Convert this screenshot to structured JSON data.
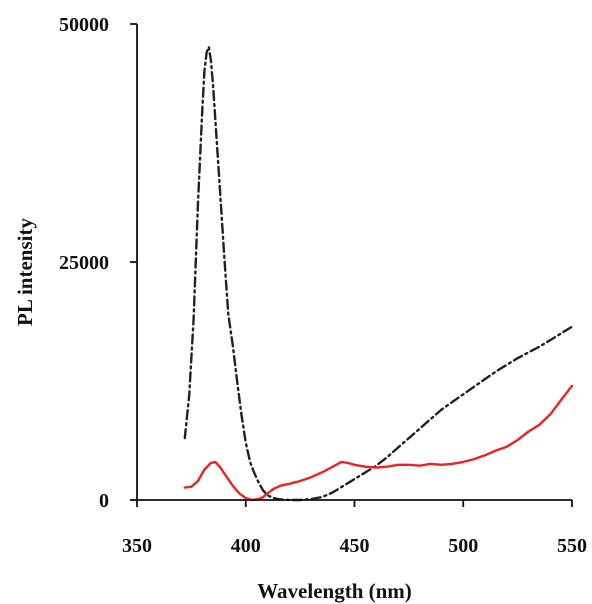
{
  "chart_data": {
    "type": "line",
    "xlabel": "Wavelength (nm)",
    "ylabel": "PL intensity",
    "xlim": [
      350,
      550
    ],
    "ylim": [
      0,
      50000
    ],
    "x_ticks": [
      350,
      400,
      450,
      500,
      550
    ],
    "y_ticks": [
      0,
      25000,
      50000
    ],
    "x_tick_labels": [
      "350",
      "400",
      "450",
      "500",
      "550"
    ],
    "y_tick_labels": [
      "0",
      "25000",
      "50000"
    ],
    "grid": false,
    "legend": "none",
    "series": [
      {
        "style": "dash-dot",
        "color": "#222222",
        "points": [
          [
            372,
            6500
          ],
          [
            374,
            11000
          ],
          [
            376,
            19000
          ],
          [
            378,
            31000
          ],
          [
            380,
            41000
          ],
          [
            381,
            45000
          ],
          [
            382,
            47000
          ],
          [
            383,
            47600
          ],
          [
            384,
            46200
          ],
          [
            385,
            43500
          ],
          [
            386,
            40000
          ],
          [
            388,
            33000
          ],
          [
            390,
            26000
          ],
          [
            392,
            19500
          ],
          [
            394,
            16300
          ],
          [
            396,
            12500
          ],
          [
            398,
            9000
          ],
          [
            400,
            6000
          ],
          [
            402,
            4000
          ],
          [
            404,
            2800
          ],
          [
            406,
            1800
          ],
          [
            408,
            1000
          ],
          [
            410,
            500
          ],
          [
            412,
            250
          ],
          [
            415,
            80
          ],
          [
            420,
            0
          ],
          [
            425,
            0
          ],
          [
            430,
            100
          ],
          [
            435,
            300
          ],
          [
            440,
            800
          ],
          [
            445,
            1500
          ],
          [
            450,
            2200
          ],
          [
            455,
            2900
          ],
          [
            460,
            3600
          ],
          [
            465,
            4500
          ],
          [
            470,
            5500
          ],
          [
            475,
            6500
          ],
          [
            480,
            7500
          ],
          [
            485,
            8500
          ],
          [
            490,
            9500
          ],
          [
            495,
            10300
          ],
          [
            500,
            11100
          ],
          [
            505,
            11900
          ],
          [
            510,
            12700
          ],
          [
            515,
            13500
          ],
          [
            520,
            14200
          ],
          [
            525,
            14900
          ],
          [
            530,
            15500
          ],
          [
            535,
            16100
          ],
          [
            540,
            16800
          ],
          [
            545,
            17500
          ],
          [
            550,
            18200
          ]
        ]
      },
      {
        "style": "solid",
        "color": "#ee2222",
        "points": [
          [
            372,
            1300
          ],
          [
            375,
            1400
          ],
          [
            378,
            2000
          ],
          [
            381,
            3200
          ],
          [
            384,
            3900
          ],
          [
            386,
            4000
          ],
          [
            388,
            3500
          ],
          [
            391,
            2500
          ],
          [
            394,
            1500
          ],
          [
            397,
            700
          ],
          [
            400,
            200
          ],
          [
            403,
            0
          ],
          [
            406,
            100
          ],
          [
            408,
            300
          ],
          [
            410,
            700
          ],
          [
            413,
            1200
          ],
          [
            416,
            1500
          ],
          [
            420,
            1700
          ],
          [
            425,
            2000
          ],
          [
            430,
            2400
          ],
          [
            435,
            2900
          ],
          [
            440,
            3500
          ],
          [
            444,
            4000
          ],
          [
            447,
            3900
          ],
          [
            450,
            3700
          ],
          [
            455,
            3500
          ],
          [
            460,
            3400
          ],
          [
            465,
            3500
          ],
          [
            470,
            3700
          ],
          [
            475,
            3700
          ],
          [
            480,
            3600
          ],
          [
            485,
            3800
          ],
          [
            490,
            3700
          ],
          [
            495,
            3800
          ],
          [
            500,
            4000
          ],
          [
            505,
            4300
          ],
          [
            510,
            4700
          ],
          [
            515,
            5200
          ],
          [
            520,
            5600
          ],
          [
            525,
            6300
          ],
          [
            530,
            7200
          ],
          [
            535,
            7900
          ],
          [
            540,
            9000
          ],
          [
            545,
            10500
          ],
          [
            550,
            12000
          ]
        ]
      }
    ]
  }
}
